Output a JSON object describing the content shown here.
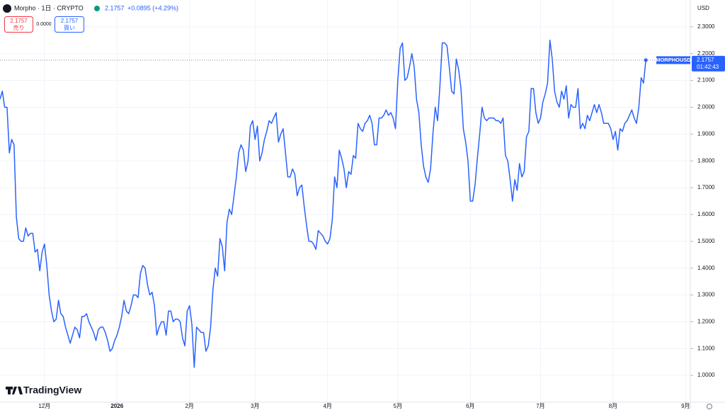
{
  "chart_data": {
    "type": "line",
    "series": [
      {
        "name": "MORPHOUSD",
        "color": "#2962ff",
        "values": [
          2.03,
          2.06,
          2.0,
          2.0,
          1.83,
          1.88,
          1.86,
          1.59,
          1.51,
          1.5,
          1.5,
          1.55,
          1.52,
          1.53,
          1.53,
          1.46,
          1.47,
          1.39,
          1.46,
          1.49,
          1.41,
          1.3,
          1.24,
          1.2,
          1.21,
          1.28,
          1.23,
          1.22,
          1.18,
          1.15,
          1.12,
          1.15,
          1.18,
          1.17,
          1.14,
          1.22,
          1.22,
          1.23,
          1.2,
          1.18,
          1.16,
          1.13,
          1.17,
          1.18,
          1.18,
          1.16,
          1.13,
          1.09,
          1.1,
          1.13,
          1.15,
          1.18,
          1.22,
          1.28,
          1.24,
          1.23,
          1.26,
          1.3,
          1.3,
          1.29,
          1.38,
          1.41,
          1.4,
          1.34,
          1.3,
          1.31,
          1.26,
          1.15,
          1.18,
          1.2,
          1.2,
          1.15,
          1.24,
          1.24,
          1.2,
          1.21,
          1.21,
          1.2,
          1.14,
          1.11,
          1.24,
          1.26,
          1.19,
          1.03,
          1.18,
          1.17,
          1.16,
          1.16,
          1.09,
          1.11,
          1.18,
          1.32,
          1.4,
          1.37,
          1.51,
          1.48,
          1.39,
          1.57,
          1.62,
          1.6,
          1.67,
          1.74,
          1.83,
          1.86,
          1.84,
          1.76,
          1.8,
          1.93,
          1.95,
          1.88,
          1.93,
          1.8,
          1.83,
          1.88,
          1.91,
          1.95,
          1.94,
          1.96,
          1.98,
          1.87,
          1.9,
          1.92,
          1.83,
          1.74,
          1.74,
          1.77,
          1.75,
          1.67,
          1.7,
          1.71,
          1.63,
          1.56,
          1.5,
          1.5,
          1.49,
          1.47,
          1.54,
          1.53,
          1.52,
          1.5,
          1.49,
          1.51,
          1.58,
          1.74,
          1.7,
          1.84,
          1.81,
          1.77,
          1.7,
          1.76,
          1.75,
          1.82,
          1.81,
          1.94,
          1.92,
          1.91,
          1.94,
          1.95,
          1.97,
          1.94,
          1.86,
          1.86,
          1.96,
          1.96,
          1.97,
          1.99,
          1.97,
          1.98,
          1.96,
          1.92,
          2.1,
          2.22,
          2.24,
          2.1,
          2.11,
          2.15,
          2.2,
          2.15,
          2.03,
          1.98,
          1.86,
          1.78,
          1.74,
          1.72,
          1.77,
          1.9,
          2.0,
          1.95,
          2.08,
          2.24,
          2.24,
          2.23,
          2.15,
          2.06,
          2.05,
          2.18,
          2.14,
          2.07,
          1.92,
          1.87,
          1.8,
          1.65,
          1.65,
          1.71,
          1.81,
          1.9,
          2.0,
          1.96,
          1.95,
          1.96,
          1.96,
          1.96,
          1.95,
          1.95,
          1.94,
          1.96,
          1.82,
          1.8,
          1.73,
          1.65,
          1.73,
          1.69,
          1.79,
          1.74,
          1.76,
          1.89,
          1.91,
          2.07,
          2.07,
          1.98,
          1.94,
          1.96,
          2.02,
          2.05,
          2.09,
          2.25,
          2.18,
          2.06,
          2.02,
          2.0,
          2.06,
          2.03,
          2.08,
          1.96,
          2.01,
          2.0,
          2.0,
          2.07,
          1.92,
          1.94,
          1.92,
          1.97,
          1.95,
          1.98,
          2.01,
          1.98,
          2.01,
          1.98,
          1.94,
          1.94,
          1.94,
          1.92,
          1.88,
          1.91,
          1.84,
          1.92,
          1.91,
          1.94,
          1.95,
          1.97,
          1.99,
          1.96,
          1.94,
          2.0,
          2.11,
          2.09,
          2.1757
        ]
      }
    ],
    "xlim": [
      0,
      295
    ],
    "xticks": [
      {
        "value": 19,
        "label": "12月"
      },
      {
        "value": 50,
        "label": "2026"
      },
      {
        "value": 81,
        "label": "2月"
      },
      {
        "value": 109,
        "label": "3月"
      },
      {
        "value": 140,
        "label": "4月"
      },
      {
        "value": 170,
        "label": "5月"
      },
      {
        "value": 201,
        "label": "6月"
      },
      {
        "value": 231,
        "label": "7月"
      },
      {
        "value": 262,
        "label": "8月"
      },
      {
        "value": 293,
        "label": "9月"
      }
    ],
    "ylim": [
      0.9,
      2.4
    ],
    "yticks": [
      {
        "value": 1.0,
        "label": "1.0000"
      },
      {
        "value": 1.1,
        "label": "1.1000"
      },
      {
        "value": 1.2,
        "label": "1.2000"
      },
      {
        "value": 1.3,
        "label": "1.3000"
      },
      {
        "value": 1.4,
        "label": "1.4000"
      },
      {
        "value": 1.5,
        "label": "1.5000"
      },
      {
        "value": 1.6,
        "label": "1.6000"
      },
      {
        "value": 1.7,
        "label": "1.7000"
      },
      {
        "value": 1.8,
        "label": "1.8000"
      },
      {
        "value": 1.9,
        "label": "1.9000"
      },
      {
        "value": 2.0,
        "label": "2.0000"
      },
      {
        "value": 2.1,
        "label": "2.1000"
      },
      {
        "value": 2.2,
        "label": "2.2000"
      },
      {
        "value": 2.3,
        "label": "2.3000"
      }
    ],
    "grid": true,
    "currency": "USD"
  },
  "header": {
    "symbol": "Morpho · 1日 · CRYPTO",
    "price": "2.1757",
    "change": "+0.0895 (+4.29%)"
  },
  "trade": {
    "sell_price": "2.1757",
    "sell_label": "売り",
    "spread": "0.0000",
    "buy_price": "2.1757",
    "buy_label": "買い"
  },
  "price_tag": {
    "symbol": "MORPHOUSD",
    "price": "2.1757",
    "countdown": "01:42:43"
  },
  "branding": "TradingView"
}
